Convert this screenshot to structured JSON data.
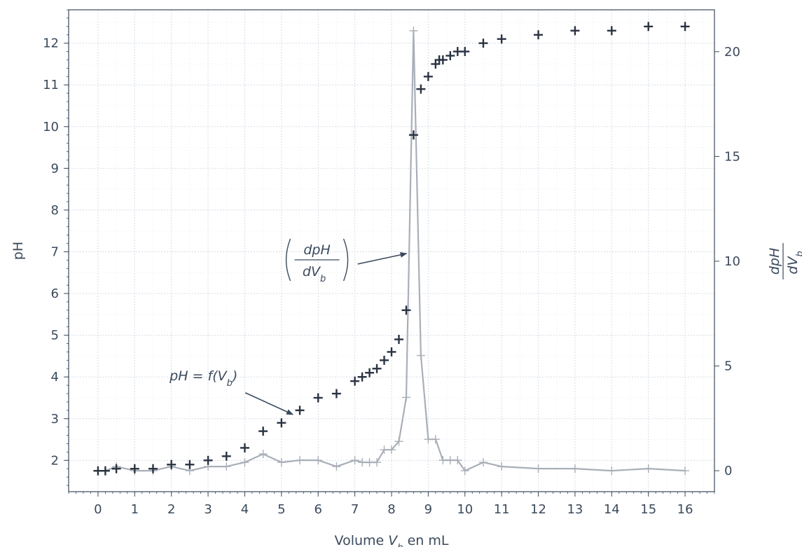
{
  "chart_data": {
    "type": "scatter",
    "title": "",
    "xlabel": {
      "prefix": "Volume ",
      "var": "V",
      "sub": "b",
      "suffix": " en mL"
    },
    "ylabel_left": "pH",
    "ylabel_right": {
      "num": "dpH",
      "den_var": "dV",
      "den_sub": "b"
    },
    "xlim": [
      -0.8,
      16.8
    ],
    "ylim_left": [
      1.25,
      12.8
    ],
    "ylim_right": [
      -1.0,
      22.0
    ],
    "x_ticks": [
      0,
      1,
      2,
      3,
      4,
      5,
      6,
      7,
      8,
      9,
      10,
      11,
      12,
      13,
      14,
      15,
      16
    ],
    "y_left_ticks": [
      2,
      3,
      4,
      5,
      6,
      7,
      8,
      9,
      10,
      11,
      12
    ],
    "y_right_ticks": [
      0,
      5,
      10,
      15,
      20
    ],
    "grid": true,
    "series": [
      {
        "axis": "left",
        "style": "markers",
        "color": "#2a3342",
        "x": [
          0,
          0.2,
          0.5,
          1,
          1.5,
          2,
          2.5,
          3,
          3.5,
          4,
          4.5,
          5,
          5.5,
          6,
          6.5,
          7,
          7.2,
          7.4,
          7.6,
          7.8,
          8,
          8.2,
          8.4,
          8.6,
          8.8,
          9,
          9.2,
          9.3,
          9.4,
          9.6,
          9.8,
          10,
          10.5,
          11,
          12,
          13,
          14,
          15,
          16
        ],
        "y": [
          1.75,
          1.75,
          1.8,
          1.8,
          1.8,
          1.9,
          1.9,
          2.0,
          2.1,
          2.3,
          2.7,
          2.9,
          3.2,
          3.5,
          3.6,
          3.9,
          4.0,
          4.1,
          4.2,
          4.4,
          4.6,
          4.9,
          5.6,
          9.8,
          10.9,
          11.2,
          11.5,
          11.6,
          11.6,
          11.7,
          11.8,
          11.8,
          12.0,
          12.1,
          12.2,
          12.3,
          12.3,
          12.4,
          12.4
        ]
      },
      {
        "axis": "right",
        "style": "line+markers",
        "color": "#a9afb8",
        "x": [
          0,
          0.2,
          0.5,
          1,
          1.5,
          2,
          2.5,
          3,
          3.5,
          4,
          4.5,
          5,
          5.5,
          6,
          6.5,
          7,
          7.2,
          7.4,
          7.6,
          7.8,
          8,
          8.2,
          8.4,
          8.6,
          8.8,
          9,
          9.2,
          9.4,
          9.6,
          9.8,
          10,
          10.5,
          11,
          12,
          13,
          14,
          15,
          16
        ],
        "y": [
          0,
          0,
          0.2,
          0,
          0,
          0.2,
          0,
          0.2,
          0.2,
          0.4,
          0.8,
          0.4,
          0.5,
          0.5,
          0.2,
          0.5,
          0.4,
          0.4,
          0.4,
          1.0,
          1.0,
          1.4,
          3.5,
          21.0,
          5.5,
          1.5,
          1.5,
          0.5,
          0.5,
          0.5,
          0,
          0.4,
          0.2,
          0.1,
          0.1,
          0,
          0.1,
          0
        ]
      }
    ],
    "annotations": [
      {
        "name": "derivative-annotation",
        "label_num": "dpH",
        "label_den_var": "dV",
        "label_den_sub": "b",
        "target_x": 8.45,
        "target_y_right": 10.4,
        "axis": "right"
      },
      {
        "name": "ph-curve-annotation",
        "label_prefix": "pH = f(",
        "label_var": "V",
        "label_sub": "b",
        "label_suffix": ")",
        "target_x": 5.35,
        "target_y_left": 3.05,
        "axis": "left"
      }
    ]
  }
}
